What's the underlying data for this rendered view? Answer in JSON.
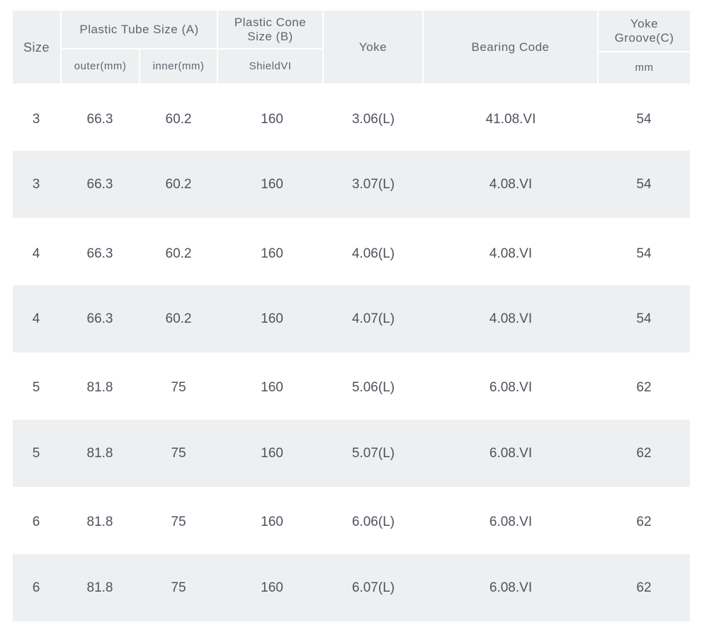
{
  "table": {
    "headers": {
      "size": "Size",
      "tube": "Plastic Tube Size (A)",
      "outer": "outer(mm)",
      "inner": "inner(mm)",
      "cone_line1": "Plastic Cone",
      "cone_line2": "Size (B)",
      "shield": "ShieldVI",
      "yoke": "Yoke",
      "bearing": "Bearing Code",
      "groove_line1": "Yoke",
      "groove_line2": "Groove(C)",
      "groove_unit": "mm"
    },
    "rows": [
      {
        "size": "3",
        "outer": "66.3",
        "inner": "60.2",
        "shield": "160",
        "yoke": "3.06(L)",
        "bearing": "41.08.VI",
        "groove": "54"
      },
      {
        "size": "3",
        "outer": "66.3",
        "inner": "60.2",
        "shield": "160",
        "yoke": "3.07(L)",
        "bearing": "4.08.VI",
        "groove": "54"
      },
      {
        "size": "4",
        "outer": "66.3",
        "inner": "60.2",
        "shield": "160",
        "yoke": "4.06(L)",
        "bearing": "4.08.VI",
        "groove": "54"
      },
      {
        "size": "4",
        "outer": "66.3",
        "inner": "60.2",
        "shield": "160",
        "yoke": "4.07(L)",
        "bearing": "4.08.VI",
        "groove": "54"
      },
      {
        "size": "5",
        "outer": "81.8",
        "inner": "75",
        "shield": "160",
        "yoke": "5.06(L)",
        "bearing": "6.08.VI",
        "groove": "62"
      },
      {
        "size": "5",
        "outer": "81.8",
        "inner": "75",
        "shield": "160",
        "yoke": "5.07(L)",
        "bearing": "6.08.VI",
        "groove": "62"
      },
      {
        "size": "6",
        "outer": "81.8",
        "inner": "75",
        "shield": "160",
        "yoke": "6.06(L)",
        "bearing": "6.08.VI",
        "groove": "62"
      },
      {
        "size": "6",
        "outer": "81.8",
        "inner": "75",
        "shield": "160",
        "yoke": "6.07(L)",
        "bearing": "6.08.VI",
        "groove": "62"
      }
    ]
  }
}
